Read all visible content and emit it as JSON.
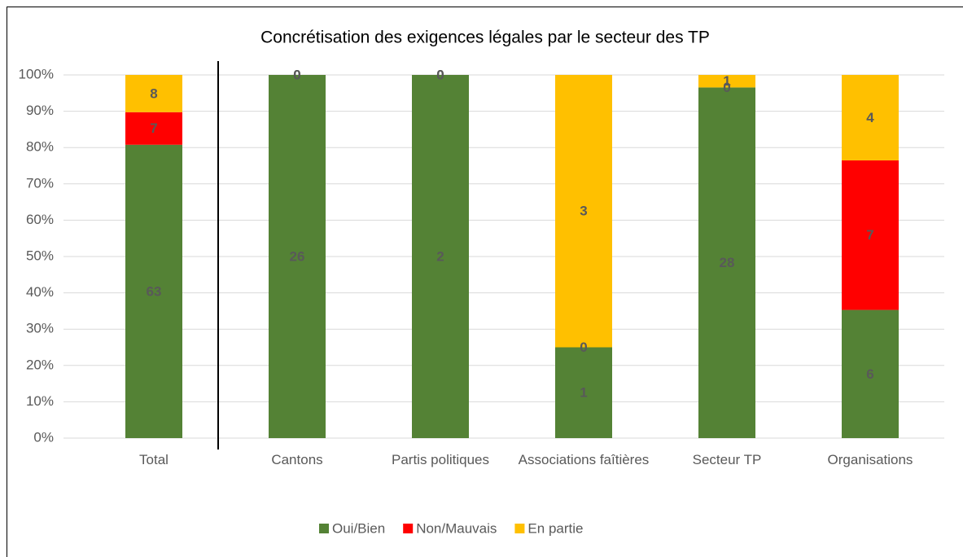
{
  "chart_data": {
    "type": "bar",
    "stacking": "percent",
    "title": "Concrétisation des exigences légales par le secteur des TP",
    "categories": [
      "Total",
      "Cantons",
      "Partis politiques",
      "Associations faîtières",
      "Secteur TP",
      "Organisations"
    ],
    "series": [
      {
        "name": "Oui/Bien",
        "color": "#548235",
        "values": [
          63,
          26,
          2,
          1,
          28,
          6
        ]
      },
      {
        "name": "Non/Mauvais",
        "color": "#ff0000",
        "values": [
          7,
          0,
          0,
          0,
          0,
          7
        ]
      },
      {
        "name": "En partie",
        "color": "#ffc000",
        "values": [
          8,
          0,
          0,
          3,
          1,
          4
        ]
      }
    ],
    "ylim": [
      0,
      100
    ],
    "yticks": [
      {
        "value": 0,
        "label": "0%"
      },
      {
        "value": 10,
        "label": "10%"
      },
      {
        "value": 20,
        "label": "20%"
      },
      {
        "value": 30,
        "label": "30%"
      },
      {
        "value": 40,
        "label": "40%"
      },
      {
        "value": 50,
        "label": "50%"
      },
      {
        "value": 60,
        "label": "60%"
      },
      {
        "value": 70,
        "label": "70%"
      },
      {
        "value": 80,
        "label": "80%"
      },
      {
        "value": 90,
        "label": "90%"
      },
      {
        "value": 100,
        "label": "100%"
      }
    ],
    "grid": true,
    "legend": "bottom"
  }
}
